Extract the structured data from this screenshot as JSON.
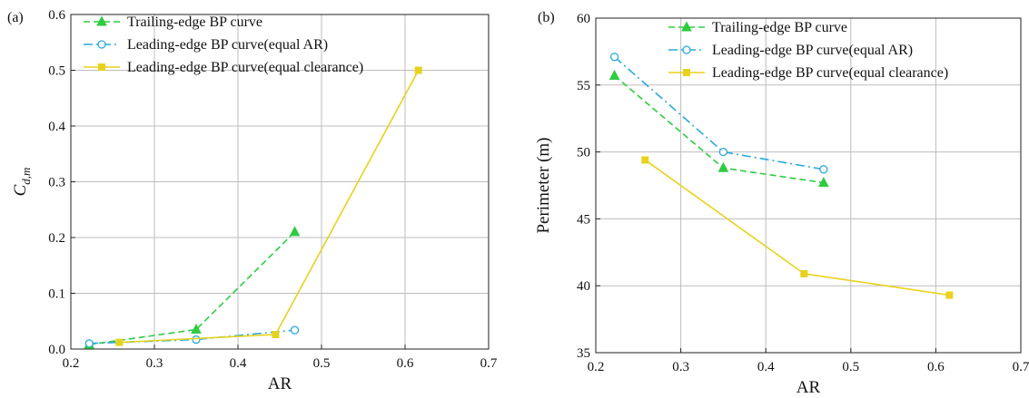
{
  "chart_data": [
    {
      "type": "line",
      "panel_label": "(a)",
      "xlabel": "AR",
      "ylabel": "C",
      "ylabel_sub": "d,m",
      "xlim": [
        0.2,
        0.7
      ],
      "ylim": [
        0.0,
        0.6
      ],
      "xticks": [
        "0.2",
        "0.3",
        "0.4",
        "0.5",
        "0.6",
        "0.7"
      ],
      "yticks": [
        "0.0",
        "0.1",
        "0.2",
        "0.3",
        "0.4",
        "0.5",
        "0.6"
      ],
      "grid": true,
      "legend_position": "top-left",
      "series": [
        {
          "name": "Trailing-edge BP curve",
          "color": "#2ecc40",
          "marker": "triangle",
          "dash": "dashed",
          "x": [
            0.222,
            0.35,
            0.468
          ],
          "y": [
            0.008,
            0.035,
            0.21
          ]
        },
        {
          "name": "Leading-edge BP curve(equal AR)",
          "color": "#29a8e0",
          "marker": "circle",
          "dash": "dashdot",
          "x": [
            0.222,
            0.35,
            0.468
          ],
          "y": [
            0.01,
            0.017,
            0.034
          ]
        },
        {
          "name": "Leading-edge BP curve(equal clearance)",
          "color": "#e8d21c",
          "marker": "square",
          "dash": "solid",
          "x": [
            0.258,
            0.445,
            0.616
          ],
          "y": [
            0.012,
            0.026,
            0.5
          ]
        }
      ]
    },
    {
      "type": "line",
      "panel_label": "(b)",
      "xlabel": "AR",
      "ylabel": "Perimeter (m)",
      "ylabel_sub": "",
      "xlim": [
        0.2,
        0.7
      ],
      "ylim": [
        35,
        60
      ],
      "xticks": [
        "0.2",
        "0.3",
        "0.4",
        "0.5",
        "0.6",
        "0.7"
      ],
      "yticks": [
        "35",
        "40",
        "45",
        "50",
        "55",
        "60"
      ],
      "grid": true,
      "legend_position": "top-right",
      "series": [
        {
          "name": "Trailing-edge BP curve",
          "color": "#2ecc40",
          "marker": "triangle",
          "dash": "dashed",
          "x": [
            0.222,
            0.35,
            0.468
          ],
          "y": [
            55.7,
            48.8,
            47.7
          ]
        },
        {
          "name": "Leading-edge BP curve(equal AR)",
          "color": "#29a8e0",
          "marker": "circle",
          "dash": "dashdot",
          "x": [
            0.222,
            0.35,
            0.468
          ],
          "y": [
            57.1,
            50.0,
            48.7
          ]
        },
        {
          "name": "Leading-edge BP curve(equal clearance)",
          "color": "#e8d21c",
          "marker": "square",
          "dash": "solid",
          "x": [
            0.258,
            0.445,
            0.616
          ],
          "y": [
            49.4,
            40.9,
            39.3
          ]
        }
      ]
    }
  ]
}
